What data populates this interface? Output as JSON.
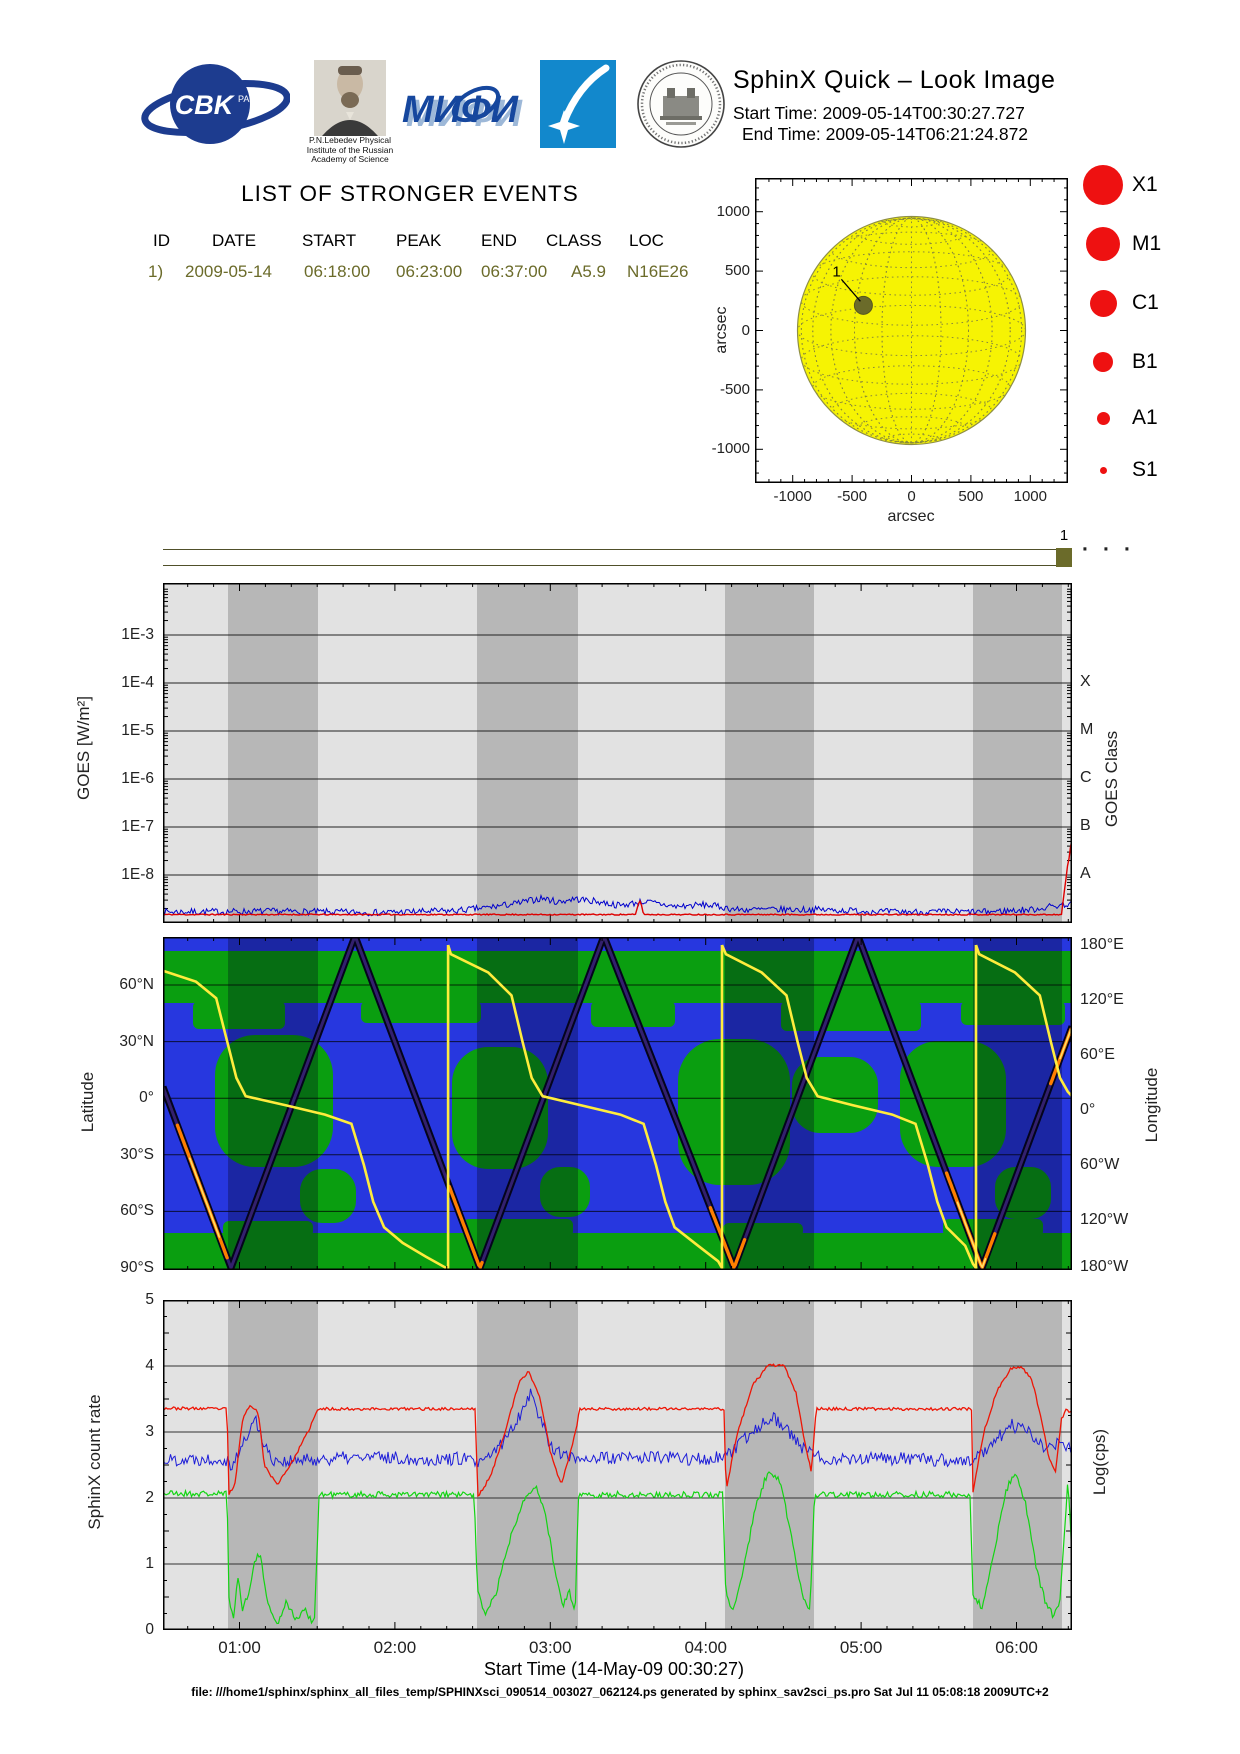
{
  "header": {
    "title": "SphinX Quick – Look Image",
    "start_time": "Start Time: 2009-05-14T00:30:27.727",
    "end_time": "End Time: 2009-05-14T06:21:24.872",
    "logos": {
      "cbk_text": "CBK",
      "cbk_sub": "PAN",
      "mifi_text": "МИФИ",
      "lebedev_caption": [
        "P.N.Lebedev Physical",
        "Institute of the Russian",
        "Academy of Science"
      ]
    }
  },
  "events": {
    "heading": "LIST OF STRONGER EVENTS",
    "columns": [
      "ID",
      "DATE",
      "START",
      "PEAK",
      "END",
      "CLASS",
      "LOC"
    ],
    "rows": [
      [
        "1)",
        "2009-05-14",
        "06:18:00",
        "06:23:00",
        "06:37:00",
        "A5.9",
        "N16E26"
      ]
    ]
  },
  "sun": {
    "ylabel": "arcsec",
    "xlabel": "arcsec",
    "ytick_labels": [
      "1000",
      "500",
      "0",
      "-500",
      "-1000"
    ],
    "xtick_labels": [
      "-1000",
      "-500",
      "0",
      "500",
      "1000"
    ],
    "event_label": "1"
  },
  "legend": {
    "color": "#ee1111",
    "items": [
      {
        "label": "X1",
        "r": 20
      },
      {
        "label": "M1",
        "r": 17
      },
      {
        "label": "C1",
        "r": 13.5
      },
      {
        "label": "B1",
        "r": 10
      },
      {
        "label": "A1",
        "r": 6.5
      },
      {
        "label": "S1",
        "r": 3.5
      }
    ]
  },
  "strip": {
    "marker_label": "1",
    "dots": "···"
  },
  "goes": {
    "ylabel": "GOES [W/m²]",
    "ytick_labels": [
      "1E-3",
      "1E-4",
      "1E-5",
      "1E-6",
      "1E-7",
      "1E-8"
    ],
    "right_label": "GOES Class",
    "class_labels": [
      "X",
      "M",
      "C",
      "B",
      "A"
    ]
  },
  "map": {
    "left_label": "Latitude",
    "lat_labels": [
      "60°N",
      "30°N",
      "0°",
      "30°S",
      "60°S",
      "90°S"
    ],
    "right_label": "Longitude",
    "lon_labels": [
      "180°E",
      "120°E",
      "60°E",
      "0°",
      "60°W",
      "120°W",
      "180°W"
    ]
  },
  "rate": {
    "ylabel": "SphinX count rate",
    "ytick_labels": [
      "5",
      "4",
      "3",
      "2",
      "1",
      "0"
    ],
    "right_label": "Log(cps)"
  },
  "xaxis": {
    "title": "Start Time (14-May-09 00:30:27)",
    "ticks": [
      {
        "h": 1,
        "label": "01:00"
      },
      {
        "h": 2,
        "label": "02:00"
      },
      {
        "h": 3,
        "label": "03:00"
      },
      {
        "h": 4,
        "label": "04:00"
      },
      {
        "h": 5,
        "label": "05:00"
      },
      {
        "h": 6,
        "label": "06:00"
      }
    ]
  },
  "footer": {
    "text": "file: ///home1/sphinx/sphinx_all_files_temp/SPHINXsci_090514_003027_062124.ps generated by sphinx_sav2sci_ps.pro Sat Jul 11 05:08:18 2009UTC+2"
  },
  "chart_data": {
    "time_axis": {
      "h0": 0.5075,
      "h1": 6.357,
      "units": "hours UT of 14-May-2009"
    },
    "bands_h": [
      [
        0.926,
        1.505
      ],
      [
        2.528,
        3.178
      ],
      [
        4.124,
        4.697
      ],
      [
        5.72,
        6.293
      ]
    ],
    "goes": {
      "type": "line",
      "ylog_range": [
        1e-09,
        0.01
      ],
      "decades": [
        -3,
        -4,
        -5,
        -6,
        -7,
        -8
      ],
      "blue": [
        [
          0.5075,
          1.7e-09
        ],
        [
          1.2,
          1.75e-09
        ],
        [
          1.9,
          1.65e-09
        ],
        [
          2.4,
          1.8e-09
        ],
        [
          2.6,
          2.1e-09
        ],
        [
          2.8,
          2.6e-09
        ],
        [
          2.95,
          3.3e-09
        ],
        [
          3.05,
          2.7e-09
        ],
        [
          3.15,
          3.2e-09
        ],
        [
          3.3,
          2.8e-09
        ],
        [
          3.45,
          2.3e-09
        ],
        [
          3.6,
          2.8e-09
        ],
        [
          3.8,
          2.2e-09
        ],
        [
          4.0,
          2.4e-09
        ],
        [
          4.2,
          1.9e-09
        ],
        [
          4.7,
          1.9e-09
        ],
        [
          5.2,
          1.7e-09
        ],
        [
          5.8,
          1.7e-09
        ],
        [
          6.1,
          1.9e-09
        ],
        [
          6.3,
          2.4e-09
        ],
        [
          6.357,
          2.6e-09
        ]
      ],
      "red": [
        [
          0.5075,
          1.5e-09
        ],
        [
          3.55,
          1.5e-09
        ],
        [
          3.575,
          3e-09
        ],
        [
          3.6,
          1.5e-09
        ],
        [
          6.29,
          1.5e-09
        ],
        [
          6.305,
          3.5e-09
        ],
        [
          6.32,
          9e-09
        ],
        [
          6.34,
          2.4e-08
        ],
        [
          6.357,
          5.6e-08
        ]
      ]
    },
    "ground_track": [
      [
        0.5075,
        6
      ],
      [
        0.945,
        -90
      ],
      [
        1.743,
        86
      ],
      [
        2.547,
        -90
      ],
      [
        3.345,
        86
      ],
      [
        4.182,
        -90
      ],
      [
        4.98,
        86
      ],
      [
        5.778,
        -90
      ],
      [
        6.357,
        38
      ]
    ],
    "track_hot": [
      [
        0.6,
        0.93
      ],
      [
        2.35,
        2.56
      ],
      [
        4.03,
        4.25
      ],
      [
        5.55,
        5.86
      ],
      [
        6.22,
        6.357
      ]
    ],
    "track_hot_core": [
      [
        0.68,
        0.88
      ],
      [
        5.62,
        5.8
      ],
      [
        6.28,
        6.357
      ]
    ],
    "lon_curve": [
      [
        [
          0.5075,
          152
        ],
        [
          0.72,
          140
        ],
        [
          0.85,
          122
        ],
        [
          0.92,
          75
        ],
        [
          0.98,
          35
        ],
        [
          1.04,
          15
        ],
        [
          1.3,
          5
        ],
        [
          1.55,
          -5
        ],
        [
          1.72,
          -15
        ],
        [
          1.8,
          -60
        ],
        [
          1.86,
          -100
        ],
        [
          1.93,
          -128
        ],
        [
          2.05,
          -145
        ],
        [
          2.2,
          -160
        ],
        [
          2.33,
          -175
        ],
        [
          2.342,
          -180
        ],
        [
          2.342,
          180
        ]
      ],
      [
        [
          2.342,
          180
        ],
        [
          2.36,
          170
        ],
        [
          2.6,
          150
        ],
        [
          2.75,
          125
        ],
        [
          2.82,
          75
        ],
        [
          2.88,
          35
        ],
        [
          2.95,
          15
        ],
        [
          3.2,
          5
        ],
        [
          3.45,
          -5
        ],
        [
          3.6,
          -15
        ],
        [
          3.68,
          -60
        ],
        [
          3.74,
          -100
        ],
        [
          3.8,
          -128
        ],
        [
          3.95,
          -148
        ],
        [
          4.08,
          -165
        ],
        [
          4.105,
          -180
        ],
        [
          4.105,
          180
        ]
      ],
      [
        [
          4.105,
          180
        ],
        [
          4.13,
          170
        ],
        [
          4.36,
          150
        ],
        [
          4.52,
          125
        ],
        [
          4.59,
          75
        ],
        [
          4.65,
          35
        ],
        [
          4.72,
          15
        ],
        [
          4.95,
          5
        ],
        [
          5.2,
          -5
        ],
        [
          5.35,
          -15
        ],
        [
          5.43,
          -60
        ],
        [
          5.49,
          -100
        ],
        [
          5.55,
          -128
        ],
        [
          5.67,
          -148
        ],
        [
          5.72,
          -168
        ],
        [
          5.739,
          -180
        ],
        [
          5.739,
          180
        ]
      ],
      [
        [
          5.739,
          180
        ],
        [
          5.76,
          170
        ],
        [
          5.99,
          150
        ],
        [
          6.15,
          125
        ],
        [
          6.22,
          75
        ],
        [
          6.28,
          35
        ],
        [
          6.33,
          20
        ],
        [
          6.357,
          15
        ]
      ]
    ],
    "count_rate": {
      "type": "line",
      "y_range": [
        0,
        5
      ],
      "red": [
        [
          0.5075,
          3.36
        ],
        [
          0.92,
          3.35
        ],
        [
          0.93,
          2.05
        ],
        [
          0.97,
          2.2
        ],
        [
          1.02,
          3.2
        ],
        [
          1.07,
          3.42
        ],
        [
          1.12,
          3.3
        ],
        [
          1.16,
          2.5
        ],
        [
          1.24,
          2.2
        ],
        [
          1.34,
          2.55
        ],
        [
          1.44,
          3.0
        ],
        [
          1.5,
          3.32
        ],
        [
          1.52,
          3.35
        ],
        [
          2.52,
          3.35
        ],
        [
          2.53,
          2.0
        ],
        [
          2.62,
          2.35
        ],
        [
          2.72,
          3.1
        ],
        [
          2.8,
          3.75
        ],
        [
          2.86,
          3.92
        ],
        [
          2.93,
          3.55
        ],
        [
          3.0,
          2.7
        ],
        [
          3.07,
          2.2
        ],
        [
          3.14,
          2.8
        ],
        [
          3.17,
          3.1
        ],
        [
          3.19,
          3.35
        ],
        [
          4.12,
          3.35
        ],
        [
          4.13,
          2.1
        ],
        [
          4.2,
          2.95
        ],
        [
          4.3,
          3.7
        ],
        [
          4.4,
          4.0
        ],
        [
          4.5,
          4.02
        ],
        [
          4.58,
          3.6
        ],
        [
          4.64,
          2.8
        ],
        [
          4.68,
          2.4
        ],
        [
          4.71,
          3.35
        ],
        [
          5.71,
          3.35
        ],
        [
          5.72,
          2.1
        ],
        [
          5.79,
          3.0
        ],
        [
          5.87,
          3.6
        ],
        [
          5.96,
          3.95
        ],
        [
          6.03,
          4.0
        ],
        [
          6.1,
          3.78
        ],
        [
          6.16,
          3.2
        ],
        [
          6.21,
          2.6
        ],
        [
          6.25,
          2.4
        ],
        [
          6.29,
          3.2
        ],
        [
          6.32,
          3.35
        ],
        [
          6.357,
          3.28
        ]
      ],
      "blue": [
        [
          0.5075,
          2.58
        ],
        [
          0.9,
          2.6
        ],
        [
          0.95,
          2.5
        ],
        [
          1.0,
          2.7
        ],
        [
          1.05,
          2.95
        ],
        [
          1.1,
          3.2
        ],
        [
          1.14,
          2.95
        ],
        [
          1.2,
          2.6
        ],
        [
          1.3,
          2.55
        ],
        [
          1.6,
          2.6
        ],
        [
          1.9,
          2.62
        ],
        [
          2.2,
          2.58
        ],
        [
          2.45,
          2.6
        ],
        [
          2.55,
          2.5
        ],
        [
          2.7,
          2.85
        ],
        [
          2.8,
          3.25
        ],
        [
          2.87,
          3.6
        ],
        [
          2.93,
          3.25
        ],
        [
          3.0,
          2.8
        ],
        [
          3.1,
          2.62
        ],
        [
          3.4,
          2.6
        ],
        [
          3.7,
          2.62
        ],
        [
          4.0,
          2.58
        ],
        [
          4.15,
          2.65
        ],
        [
          4.3,
          3.0
        ],
        [
          4.42,
          3.25
        ],
        [
          4.52,
          3.05
        ],
        [
          4.62,
          2.75
        ],
        [
          4.75,
          2.6
        ],
        [
          5.1,
          2.6
        ],
        [
          5.45,
          2.58
        ],
        [
          5.72,
          2.55
        ],
        [
          5.85,
          2.85
        ],
        [
          5.97,
          3.1
        ],
        [
          6.08,
          3.0
        ],
        [
          6.18,
          2.75
        ],
        [
          6.28,
          2.85
        ],
        [
          6.357,
          2.7
        ]
      ],
      "green": [
        [
          0.5075,
          2.07
        ],
        [
          0.92,
          2.06
        ],
        [
          0.93,
          0.5
        ],
        [
          0.96,
          0.2
        ],
        [
          0.99,
          0.8
        ],
        [
          1.02,
          0.3
        ],
        [
          1.06,
          0.6
        ],
        [
          1.1,
          1.05
        ],
        [
          1.13,
          1.15
        ],
        [
          1.17,
          0.6
        ],
        [
          1.2,
          0.25
        ],
        [
          1.25,
          0.1
        ],
        [
          1.3,
          0.45
        ],
        [
          1.36,
          0.15
        ],
        [
          1.42,
          0.3
        ],
        [
          1.48,
          0.1
        ],
        [
          1.5,
          1.2
        ],
        [
          1.51,
          2.05
        ],
        [
          2.51,
          2.05
        ],
        [
          2.53,
          0.6
        ],
        [
          2.58,
          0.25
        ],
        [
          2.65,
          0.55
        ],
        [
          2.73,
          1.3
        ],
        [
          2.82,
          1.95
        ],
        [
          2.9,
          2.2
        ],
        [
          2.97,
          1.75
        ],
        [
          3.03,
          0.9
        ],
        [
          3.08,
          0.35
        ],
        [
          3.12,
          0.6
        ],
        [
          3.16,
          0.2
        ],
        [
          3.18,
          2.05
        ],
        [
          4.11,
          2.05
        ],
        [
          4.13,
          0.5
        ],
        [
          4.18,
          0.3
        ],
        [
          4.24,
          0.9
        ],
        [
          4.32,
          1.85
        ],
        [
          4.4,
          2.4
        ],
        [
          4.48,
          2.25
        ],
        [
          4.56,
          1.3
        ],
        [
          4.62,
          0.55
        ],
        [
          4.67,
          0.3
        ],
        [
          4.7,
          2.05
        ],
        [
          5.7,
          2.05
        ],
        [
          5.72,
          0.5
        ],
        [
          5.78,
          0.35
        ],
        [
          5.85,
          1.1
        ],
        [
          5.93,
          2.1
        ],
        [
          5.99,
          2.4
        ],
        [
          6.06,
          1.9
        ],
        [
          6.13,
          0.9
        ],
        [
          6.19,
          0.4
        ],
        [
          6.24,
          0.2
        ],
        [
          6.28,
          0.45
        ],
        [
          6.31,
          1.5
        ],
        [
          6.33,
          2.25
        ],
        [
          6.345,
          1.7
        ],
        [
          6.357,
          1.0
        ]
      ]
    },
    "sun_event": {
      "x_arcsec": -405,
      "y_arcsec": 212,
      "class": "A5.9",
      "location": "N16E26"
    }
  }
}
